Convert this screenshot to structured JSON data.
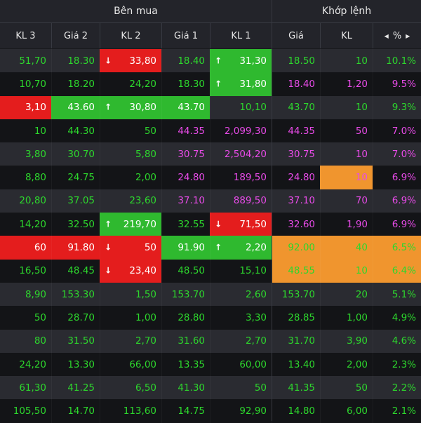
{
  "groups": {
    "buy": "Bên mua",
    "match": "Khớp lệnh"
  },
  "columns": [
    "KL 3",
    "Giá 2",
    "KL 2",
    "Giá 1",
    "KL 1",
    "Giá",
    "KL",
    "%"
  ],
  "colors": {
    "green": "#2dd72d",
    "purple": "#e84be8",
    "red": "#e41d1d",
    "green_bg": "#2fb92f",
    "orange": "#f0952e"
  },
  "rows": [
    {
      "c": [
        "51,70",
        "18.30",
        "33,80",
        "18.40",
        "31,30",
        "18.50",
        "10",
        "10.1%"
      ],
      "t": [
        "g",
        "g",
        "w",
        "g",
        "w",
        "g",
        "g",
        "g"
      ],
      "b": [
        "",
        "",
        "r",
        "",
        "gr",
        "",
        "",
        ""
      ],
      "a": [
        "",
        "",
        "down",
        "",
        "up",
        "",
        "",
        ""
      ]
    },
    {
      "c": [
        "10,70",
        "18.20",
        "24,20",
        "18.30",
        "31,80",
        "18.40",
        "1,20",
        "9.5%"
      ],
      "t": [
        "g",
        "g",
        "g",
        "g",
        "w",
        "p",
        "p",
        "p"
      ],
      "b": [
        "",
        "",
        "",
        "",
        "gr",
        "",
        "",
        ""
      ],
      "a": [
        "",
        "",
        "",
        "",
        "up",
        "",
        "",
        ""
      ]
    },
    {
      "c": [
        "3,10",
        "43.60",
        "30,80",
        "43.70",
        "10,10",
        "43.70",
        "10",
        "9.3%"
      ],
      "t": [
        "w",
        "w",
        "w",
        "w",
        "g",
        "g",
        "g",
        "g"
      ],
      "b": [
        "r",
        "gr",
        "gr",
        "gr",
        "",
        "",
        "",
        ""
      ],
      "a": [
        "",
        "",
        "up",
        "",
        "",
        "",
        "",
        ""
      ]
    },
    {
      "c": [
        "10",
        "44.30",
        "50",
        "44.35",
        "2,099,30",
        "44.35",
        "50",
        "7.0%"
      ],
      "t": [
        "g",
        "g",
        "g",
        "p",
        "p",
        "p",
        "p",
        "p"
      ],
      "b": [
        "",
        "",
        "",
        "",
        "",
        "",
        "",
        ""
      ],
      "a": [
        "",
        "",
        "",
        "",
        "",
        "",
        "",
        ""
      ]
    },
    {
      "c": [
        "3,80",
        "30.70",
        "5,80",
        "30.75",
        "2,504,20",
        "30.75",
        "10",
        "7.0%"
      ],
      "t": [
        "g",
        "g",
        "g",
        "p",
        "p",
        "p",
        "p",
        "p"
      ],
      "b": [
        "",
        "",
        "",
        "",
        "",
        "",
        "",
        ""
      ],
      "a": [
        "",
        "",
        "",
        "",
        "",
        "",
        "",
        ""
      ]
    },
    {
      "c": [
        "8,80",
        "24.75",
        "2,00",
        "24.80",
        "189,50",
        "24.80",
        "10",
        "6.9%"
      ],
      "t": [
        "g",
        "g",
        "g",
        "p",
        "p",
        "p",
        "p",
        "p"
      ],
      "b": [
        "",
        "",
        "",
        "",
        "",
        "",
        "o",
        ""
      ],
      "a": [
        "",
        "",
        "",
        "",
        "",
        "",
        "",
        ""
      ]
    },
    {
      "c": [
        "20,80",
        "37.05",
        "23,60",
        "37.10",
        "889,50",
        "37.10",
        "70",
        "6.9%"
      ],
      "t": [
        "g",
        "g",
        "g",
        "p",
        "p",
        "p",
        "p",
        "p"
      ],
      "b": [
        "",
        "",
        "",
        "",
        "",
        "",
        "",
        ""
      ],
      "a": [
        "",
        "",
        "",
        "",
        "",
        "",
        "",
        ""
      ]
    },
    {
      "c": [
        "14,20",
        "32.50",
        "219,70",
        "32.55",
        "71,50",
        "32.60",
        "1,90",
        "6.9%"
      ],
      "t": [
        "g",
        "g",
        "w",
        "g",
        "w",
        "p",
        "p",
        "p"
      ],
      "b": [
        "",
        "",
        "gr",
        "",
        "r",
        "",
        "",
        ""
      ],
      "a": [
        "",
        "",
        "up",
        "",
        "down",
        "",
        "",
        ""
      ]
    },
    {
      "c": [
        "60",
        "91.80",
        "50",
        "91.90",
        "2,20",
        "92.00",
        "40",
        "6.5%"
      ],
      "t": [
        "w",
        "w",
        "w",
        "w",
        "w",
        "g",
        "g",
        "g"
      ],
      "b": [
        "r",
        "r",
        "r",
        "gr",
        "gr",
        "o",
        "o",
        "o"
      ],
      "a": [
        "",
        "",
        "down",
        "",
        "up",
        "",
        "",
        ""
      ]
    },
    {
      "c": [
        "16,50",
        "48.45",
        "23,40",
        "48.50",
        "15,10",
        "48.55",
        "10",
        "6.4%"
      ],
      "t": [
        "g",
        "g",
        "w",
        "g",
        "g",
        "g",
        "g",
        "g"
      ],
      "b": [
        "",
        "",
        "r",
        "",
        "",
        "o",
        "o",
        "o"
      ],
      "a": [
        "",
        "",
        "down",
        "",
        "",
        "",
        "",
        ""
      ]
    },
    {
      "c": [
        "8,90",
        "153.30",
        "1,50",
        "153.70",
        "2,60",
        "153.70",
        "20",
        "5.1%"
      ],
      "t": [
        "g",
        "g",
        "g",
        "g",
        "g",
        "g",
        "g",
        "g"
      ],
      "b": [
        "",
        "",
        "",
        "",
        "",
        "",
        "",
        ""
      ],
      "a": [
        "",
        "",
        "",
        "",
        "",
        "",
        "",
        ""
      ]
    },
    {
      "c": [
        "50",
        "28.70",
        "1,00",
        "28.80",
        "3,30",
        "28.85",
        "1,00",
        "4.9%"
      ],
      "t": [
        "g",
        "g",
        "g",
        "g",
        "g",
        "g",
        "g",
        "g"
      ],
      "b": [
        "",
        "",
        "",
        "",
        "",
        "",
        "",
        ""
      ],
      "a": [
        "",
        "",
        "",
        "",
        "",
        "",
        "",
        ""
      ]
    },
    {
      "c": [
        "80",
        "31.50",
        "2,70",
        "31.60",
        "2,70",
        "31.70",
        "3,90",
        "4.6%"
      ],
      "t": [
        "g",
        "g",
        "g",
        "g",
        "g",
        "g",
        "g",
        "g"
      ],
      "b": [
        "",
        "",
        "",
        "",
        "",
        "",
        "",
        ""
      ],
      "a": [
        "",
        "",
        "",
        "",
        "",
        "",
        "",
        ""
      ]
    },
    {
      "c": [
        "24,20",
        "13.30",
        "66,00",
        "13.35",
        "60,00",
        "13.40",
        "2,00",
        "2.3%"
      ],
      "t": [
        "g",
        "g",
        "g",
        "g",
        "g",
        "g",
        "g",
        "g"
      ],
      "b": [
        "",
        "",
        "",
        "",
        "",
        "",
        "",
        ""
      ],
      "a": [
        "",
        "",
        "",
        "",
        "",
        "",
        "",
        ""
      ]
    },
    {
      "c": [
        "61,30",
        "41.25",
        "6,50",
        "41.30",
        "50",
        "41.35",
        "50",
        "2.2%"
      ],
      "t": [
        "g",
        "g",
        "g",
        "g",
        "g",
        "g",
        "g",
        "g"
      ],
      "b": [
        "",
        "",
        "",
        "",
        "",
        "",
        "",
        ""
      ],
      "a": [
        "",
        "",
        "",
        "",
        "",
        "",
        "",
        ""
      ]
    },
    {
      "c": [
        "105,50",
        "14.70",
        "113,60",
        "14.75",
        "92,90",
        "14.80",
        "6,00",
        "2.1%"
      ],
      "t": [
        "g",
        "g",
        "g",
        "g",
        "g",
        "g",
        "g",
        "g"
      ],
      "b": [
        "",
        "",
        "",
        "",
        "",
        "",
        "",
        ""
      ],
      "a": [
        "",
        "",
        "",
        "",
        "",
        "",
        "",
        ""
      ]
    }
  ]
}
